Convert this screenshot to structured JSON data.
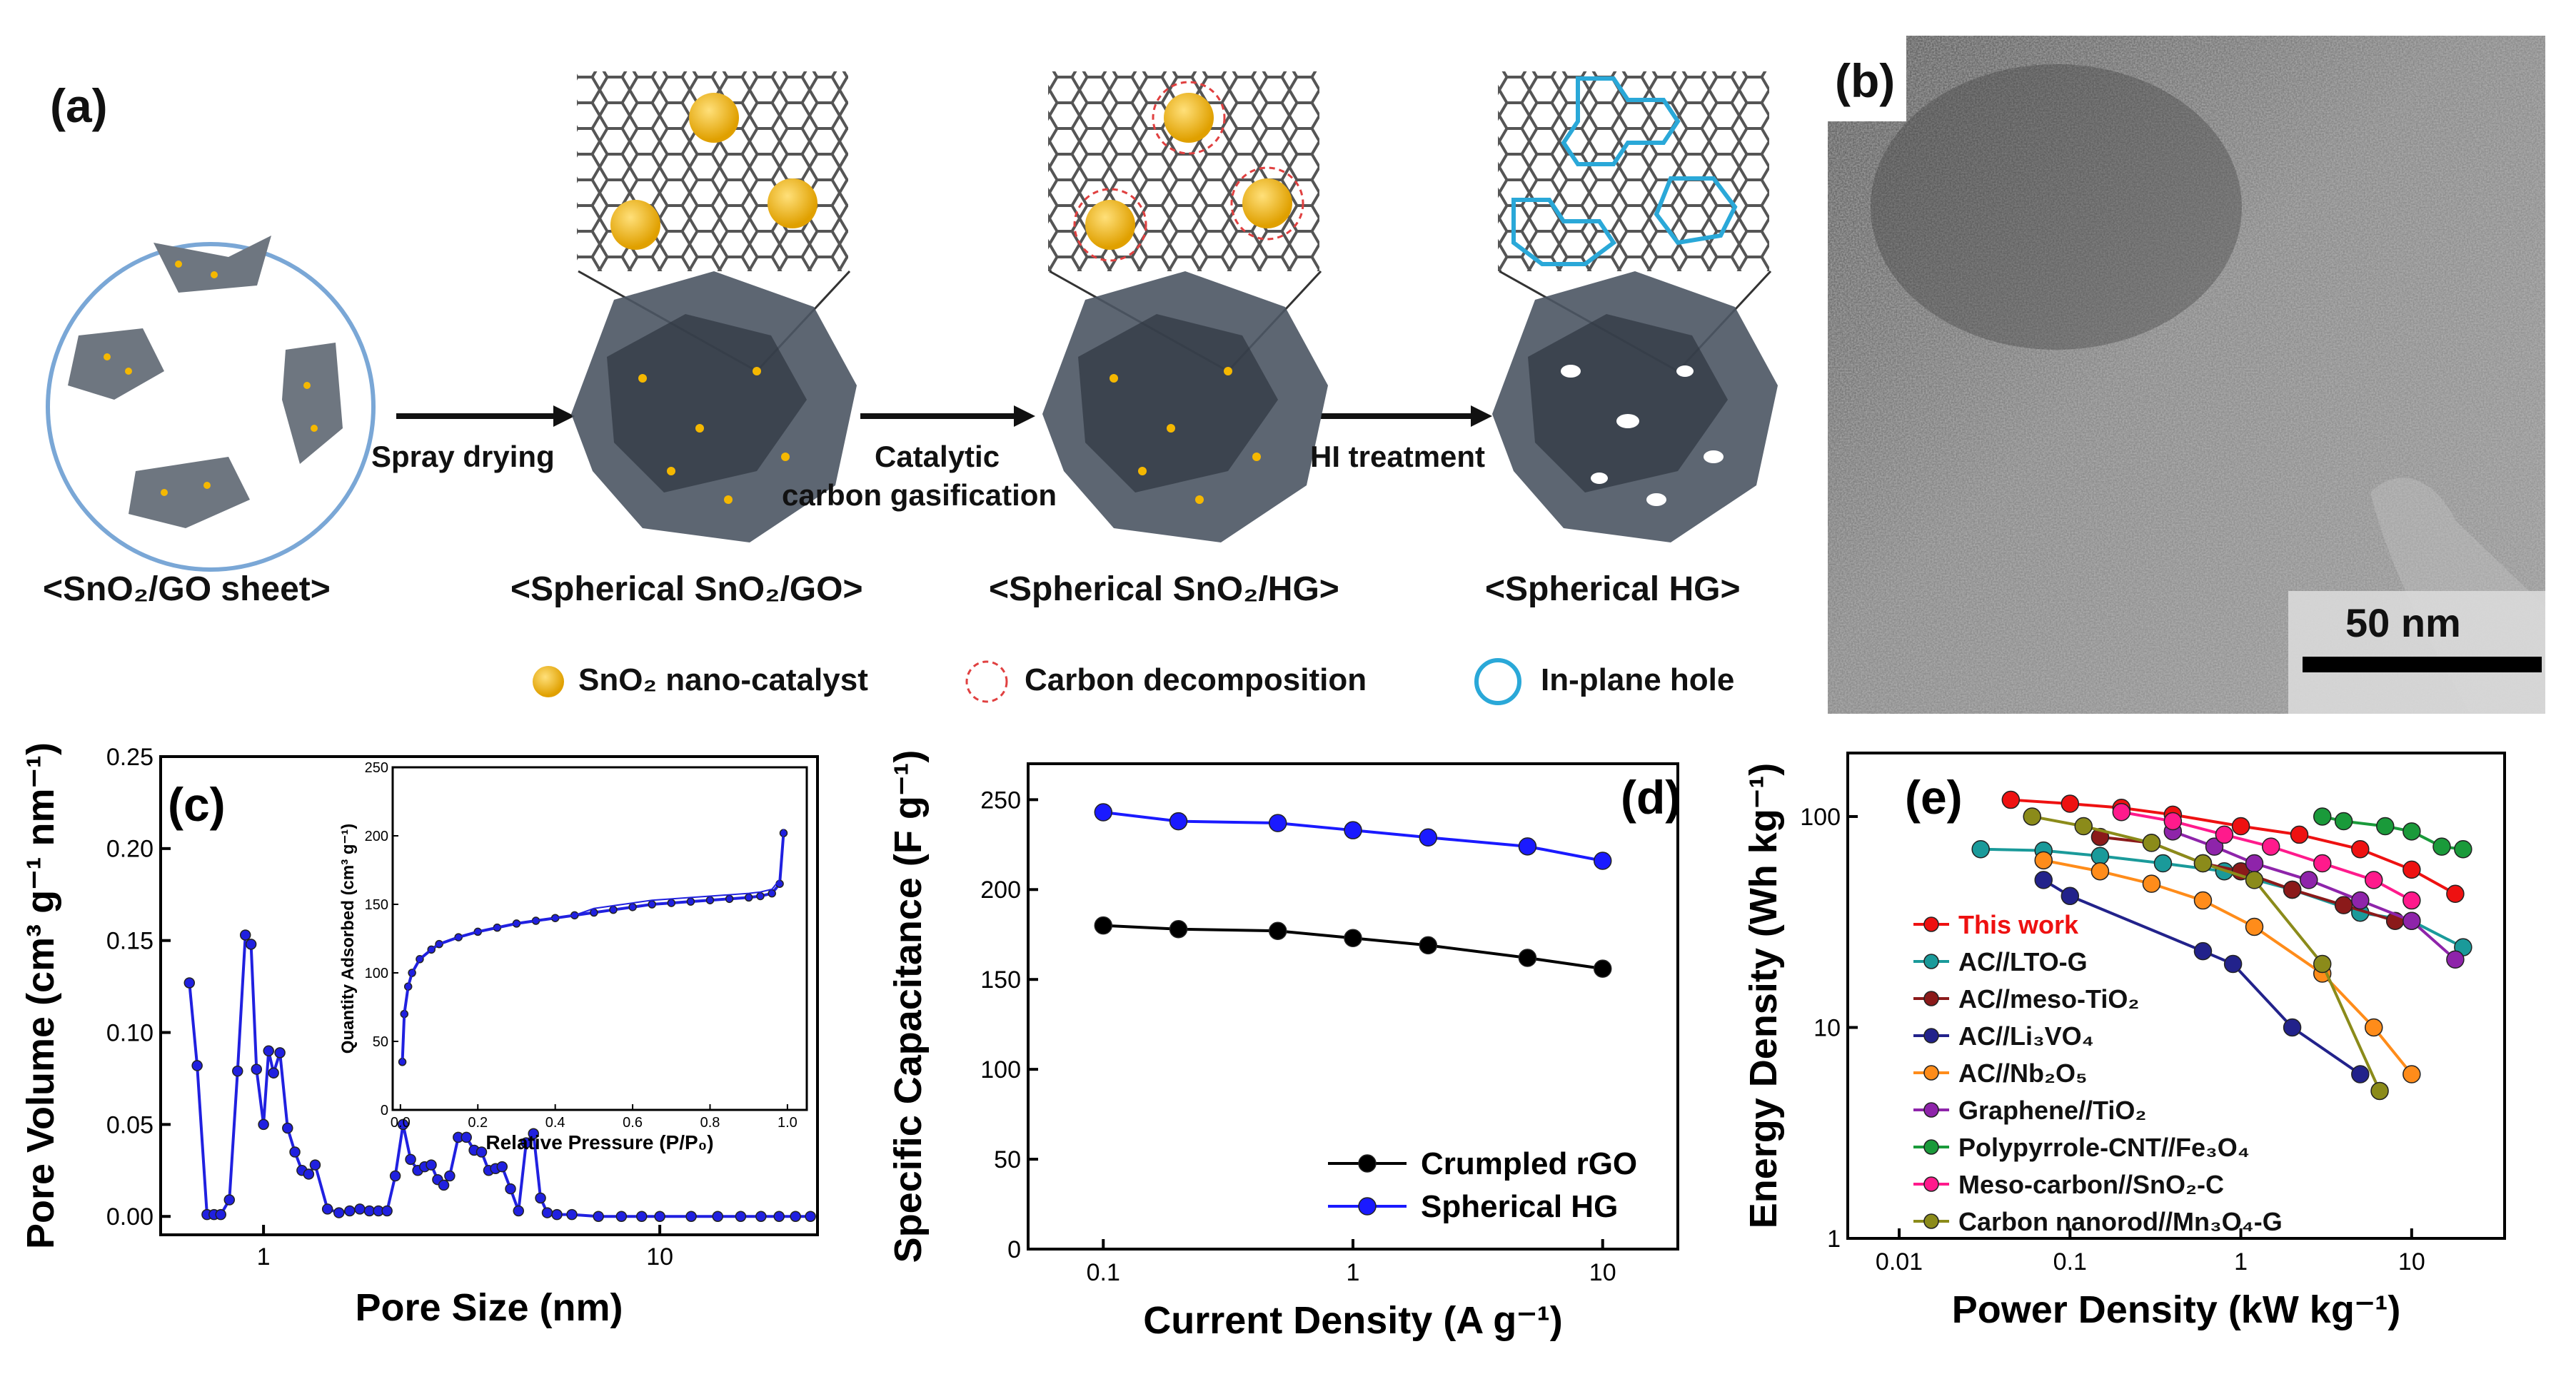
{
  "panel_a": {
    "label": "(a)",
    "stages": [
      {
        "title": "<SnO₂/GO sheet>"
      },
      {
        "title": "<Spherical SnO₂/GO>"
      },
      {
        "title": "<Spherical SnO₂/HG>"
      },
      {
        "title": "<Spherical HG>"
      }
    ],
    "arrows": [
      {
        "label": "Spray drying"
      },
      {
        "label_line1": "Catalytic",
        "label_line2": "carbon gasification"
      },
      {
        "label": "HI treatment"
      }
    ],
    "legend": [
      {
        "label": "SnO₂ nano-catalyst"
      },
      {
        "label": "Carbon decomposition"
      },
      {
        "label": "In-plane hole"
      }
    ]
  },
  "panel_b": {
    "label": "(b)",
    "scale_bar": "50 nm"
  },
  "chart_data": [
    {
      "id": "c",
      "type": "line",
      "label": "(c)",
      "xlabel": "Pore Size (nm)",
      "ylabel": "Pore Volume (cm³ g⁻¹ nm⁻¹)",
      "xscale": "log",
      "xlim": [
        0.55,
        25
      ],
      "ylim": [
        -0.01,
        0.25
      ],
      "yticks": [
        "0.00",
        "0.05",
        "0.10",
        "0.15",
        "0.20",
        "0.25"
      ],
      "xticks": [
        "1",
        "10"
      ],
      "x": [
        0.65,
        0.68,
        0.72,
        0.75,
        0.78,
        0.82,
        0.86,
        0.9,
        0.93,
        0.96,
        1.0,
        1.03,
        1.06,
        1.1,
        1.15,
        1.2,
        1.25,
        1.3,
        1.35,
        1.45,
        1.55,
        1.65,
        1.75,
        1.85,
        1.95,
        2.05,
        2.15,
        2.25,
        2.35,
        2.45,
        2.55,
        2.65,
        2.75,
        2.85,
        2.95,
        3.1,
        3.25,
        3.4,
        3.55,
        3.7,
        3.85,
        4.0,
        4.2,
        4.4,
        4.6,
        4.8,
        5.0,
        5.2,
        5.5,
        6,
        7,
        8,
        9,
        10,
        12,
        14,
        16,
        18,
        20,
        22,
        24
      ],
      "y": [
        0.127,
        0.082,
        0.001,
        0.001,
        0.001,
        0.009,
        0.079,
        0.153,
        0.148,
        0.08,
        0.05,
        0.09,
        0.078,
        0.089,
        0.048,
        0.035,
        0.025,
        0.023,
        0.028,
        0.004,
        0.002,
        0.003,
        0.004,
        0.003,
        0.003,
        0.003,
        0.022,
        0.05,
        0.031,
        0.025,
        0.027,
        0.028,
        0.02,
        0.017,
        0.022,
        0.043,
        0.043,
        0.036,
        0.035,
        0.025,
        0.026,
        0.027,
        0.015,
        0.003,
        0.04,
        0.045,
        0.01,
        0.002,
        0.001,
        0.001,
        0.0,
        0.0,
        0.0,
        0.0,
        0.0,
        0.0,
        0.0,
        0.0,
        0.0,
        0.0,
        0.0
      ]
    },
    {
      "id": "c_inset",
      "type": "line",
      "xlabel": "Relative Pressure (P/P₀)",
      "ylabel": "Quantity Adsorbed (cm³ g⁻¹)",
      "xlim": [
        -0.02,
        1.05
      ],
      "ylim": [
        0,
        250
      ],
      "xticks": [
        "0.0",
        "0.2",
        "0.4",
        "0.6",
        "0.8",
        "1.0"
      ],
      "yticks": [
        "0",
        "50",
        "100",
        "150",
        "200",
        "250"
      ],
      "x": [
        0.005,
        0.01,
        0.02,
        0.03,
        0.05,
        0.08,
        0.1,
        0.15,
        0.2,
        0.25,
        0.3,
        0.35,
        0.4,
        0.45,
        0.5,
        0.55,
        0.6,
        0.65,
        0.7,
        0.75,
        0.8,
        0.85,
        0.9,
        0.93,
        0.96,
        0.98,
        0.99
      ],
      "y": [
        35,
        70,
        90,
        100,
        110,
        117,
        121,
        126,
        130,
        133,
        136,
        138,
        140,
        142,
        144,
        146,
        148,
        150,
        151,
        152,
        153,
        154,
        155,
        156,
        158,
        165,
        202
      ]
    },
    {
      "id": "d",
      "type": "line",
      "label": "(d)",
      "xlabel": "Current Density (A g⁻¹)",
      "ylabel": "Specific Capacitance (F g⁻¹)",
      "xscale": "log",
      "xlim": [
        0.05,
        20
      ],
      "ylim": [
        0,
        270
      ],
      "xticks": [
        "0.1",
        "1",
        "10"
      ],
      "yticks": [
        "0",
        "50",
        "100",
        "150",
        "200",
        "250"
      ],
      "series": [
        {
          "name": "Crumpled rGO",
          "color": "#000000",
          "x": [
            0.1,
            0.2,
            0.5,
            1,
            2,
            5,
            10
          ],
          "y": [
            180,
            178,
            177,
            173,
            169,
            162,
            156
          ]
        },
        {
          "name": "Spherical HG",
          "color": "#1a1aff",
          "x": [
            0.1,
            0.2,
            0.5,
            1,
            2,
            5,
            10
          ],
          "y": [
            243,
            238,
            237,
            233,
            229,
            224,
            216
          ]
        }
      ]
    },
    {
      "id": "e",
      "type": "line",
      "label": "(e)",
      "xlabel": "Power Density (kW kg⁻¹)",
      "ylabel": "Energy Density (Wh kg⁻¹)",
      "xscale": "log",
      "yscale": "log",
      "xlim": [
        0.005,
        35
      ],
      "ylim": [
        1,
        200
      ],
      "xticks": [
        "0.01",
        "0.1",
        "1",
        "10"
      ],
      "yticks": [
        "1",
        "10",
        "100"
      ],
      "series": [
        {
          "name": "This work",
          "color": "#ee1111",
          "x": [
            0.045,
            0.1,
            0.2,
            0.4,
            1,
            2.2,
            5,
            10,
            18
          ],
          "y": [
            120,
            115,
            110,
            102,
            90,
            82,
            70,
            56,
            43
          ]
        },
        {
          "name": "AC//LTO-G",
          "color": "#1a9a9a",
          "x": [
            0.03,
            0.07,
            0.15,
            0.35,
            0.8,
            2,
            5,
            10,
            20
          ],
          "y": [
            70,
            69,
            65,
            60,
            55,
            45,
            35,
            32,
            24
          ]
        },
        {
          "name": "AC//meso-TiO₂",
          "color": "#8b1a1a",
          "x": [
            0.15,
            0.3,
            0.6,
            1,
            2,
            4,
            8
          ],
          "y": [
            80,
            75,
            60,
            55,
            45,
            38,
            32
          ]
        },
        {
          "name": "AC//Li₃VO₄",
          "color": "#22228b",
          "x": [
            0.07,
            0.1,
            0.6,
            0.9,
            2,
            5
          ],
          "y": [
            50,
            42,
            23,
            20,
            10,
            6
          ]
        },
        {
          "name": "AC//Nb₂O₅",
          "color": "#ff8c1a",
          "x": [
            0.07,
            0.15,
            0.3,
            0.6,
            1.2,
            3,
            6,
            10
          ],
          "y": [
            62,
            55,
            48,
            40,
            30,
            18,
            10,
            6
          ]
        },
        {
          "name": "Graphene//TiO₂",
          "color": "#8e24aa",
          "x": [
            0.4,
            0.7,
            1.2,
            2.5,
            5,
            10,
            18
          ],
          "y": [
            85,
            72,
            60,
            50,
            40,
            32,
            21
          ]
        },
        {
          "name": "Polypyrrole-CNT//Fe₃O₄",
          "color": "#1a9a3a",
          "x": [
            3,
            4,
            7,
            10,
            15,
            20
          ],
          "y": [
            100,
            95,
            90,
            85,
            72,
            70
          ]
        },
        {
          "name": "Meso-carbon//SnO₂-C",
          "color": "#ff1a8c",
          "x": [
            0.2,
            0.4,
            0.8,
            1.5,
            3,
            6,
            10
          ],
          "y": [
            105,
            95,
            82,
            72,
            60,
            50,
            40
          ]
        },
        {
          "name": "Carbon nanorod//Mn₃O₄-G",
          "color": "#8b8b1a",
          "x": [
            0.06,
            0.12,
            0.3,
            0.6,
            1.2,
            3,
            6.5
          ],
          "y": [
            100,
            90,
            75,
            60,
            50,
            20,
            5
          ]
        }
      ]
    }
  ]
}
